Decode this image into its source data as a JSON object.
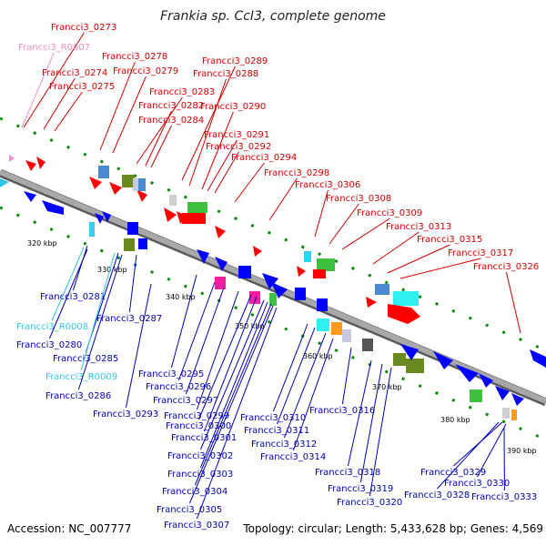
{
  "title": "Frankia sp. CcI3, complete genome",
  "footer": {
    "accession": "Accession: NC_007777",
    "summary": "Topology: circular; Length: 5,433,628 bp; Genes: 4,569"
  },
  "colors": {
    "forward_label": "#d40000",
    "reverse_label": "#0000b8",
    "rna_forward_label": "#f090c8",
    "rna_reverse_label": "#30c8e8",
    "backbone": "#8a8a8a",
    "forward_gene": "#ff0000",
    "reverse_gene": "#0000ff"
  },
  "ticks": [
    "320 kbp",
    "330 kbp",
    "340 kbp",
    "350 kbp",
    "360 kbp",
    "370 kbp",
    "380 kbp",
    "390 kbp"
  ],
  "upper_labels": [
    {
      "text": "Francci3_0273",
      "kind": "forward"
    },
    {
      "text": "Francci3_R0007",
      "kind": "rna_forward"
    },
    {
      "text": "Francci3_0274",
      "kind": "forward"
    },
    {
      "text": "Francci3_0275",
      "kind": "forward"
    },
    {
      "text": "Francci3_0278",
      "kind": "forward"
    },
    {
      "text": "Francci3_0279",
      "kind": "forward"
    },
    {
      "text": "Francci3_0289",
      "kind": "forward"
    },
    {
      "text": "Francci3_0288",
      "kind": "forward"
    },
    {
      "text": "Francci3_0283",
      "kind": "forward"
    },
    {
      "text": "Francci3_0282",
      "kind": "forward"
    },
    {
      "text": "Francci3_0290",
      "kind": "forward"
    },
    {
      "text": "Francci3_0284",
      "kind": "forward"
    },
    {
      "text": "Francci3_0291",
      "kind": "forward"
    },
    {
      "text": "Francci3_0292",
      "kind": "forward"
    },
    {
      "text": "Francci3_0294",
      "kind": "forward"
    },
    {
      "text": "Francci3_0298",
      "kind": "forward"
    },
    {
      "text": "Francci3_0306",
      "kind": "forward"
    },
    {
      "text": "Francci3_0308",
      "kind": "forward"
    },
    {
      "text": "Francci3_0309",
      "kind": "forward"
    },
    {
      "text": "Francci3_0313",
      "kind": "forward"
    },
    {
      "text": "Francci3_0315",
      "kind": "forward"
    },
    {
      "text": "Francci3_0317",
      "kind": "forward"
    },
    {
      "text": "Francci3_0326",
      "kind": "forward"
    }
  ],
  "lower_labels": [
    {
      "text": "Francci3_0281",
      "kind": "reverse"
    },
    {
      "text": "Francci3_0287",
      "kind": "reverse"
    },
    {
      "text": "Francci3_R0008",
      "kind": "rna_reverse"
    },
    {
      "text": "Francci3_0280",
      "kind": "reverse"
    },
    {
      "text": "Francci3_0285",
      "kind": "reverse"
    },
    {
      "text": "Francci3_R0009",
      "kind": "rna_reverse"
    },
    {
      "text": "Francci3_0286",
      "kind": "reverse"
    },
    {
      "text": "Francci3_0293",
      "kind": "reverse"
    },
    {
      "text": "Francci3_0295",
      "kind": "reverse"
    },
    {
      "text": "Francci3_0296",
      "kind": "reverse"
    },
    {
      "text": "Francci3_0297",
      "kind": "reverse"
    },
    {
      "text": "Francci3_0299",
      "kind": "reverse"
    },
    {
      "text": "Francci3_0300",
      "kind": "reverse"
    },
    {
      "text": "Francci3_0301",
      "kind": "reverse"
    },
    {
      "text": "Francci3_0302",
      "kind": "reverse"
    },
    {
      "text": "Francci3_0303",
      "kind": "reverse"
    },
    {
      "text": "Francci3_0304",
      "kind": "reverse"
    },
    {
      "text": "Francci3_0305",
      "kind": "reverse"
    },
    {
      "text": "Francci3_0307",
      "kind": "reverse"
    },
    {
      "text": "Francci3_0310",
      "kind": "reverse"
    },
    {
      "text": "Francci3_0311",
      "kind": "reverse"
    },
    {
      "text": "Francci3_0312",
      "kind": "reverse"
    },
    {
      "text": "Francci3_0314",
      "kind": "reverse"
    },
    {
      "text": "Francci3_0316",
      "kind": "reverse"
    },
    {
      "text": "Francci3_0318",
      "kind": "reverse"
    },
    {
      "text": "Francci3_0319",
      "kind": "reverse"
    },
    {
      "text": "Francci3_0320",
      "kind": "reverse"
    },
    {
      "text": "Francci3_0329",
      "kind": "reverse"
    },
    {
      "text": "Francci3_0330",
      "kind": "reverse"
    },
    {
      "text": "Francci3_0328",
      "kind": "reverse"
    },
    {
      "text": "Francci3_0333",
      "kind": "reverse"
    }
  ]
}
